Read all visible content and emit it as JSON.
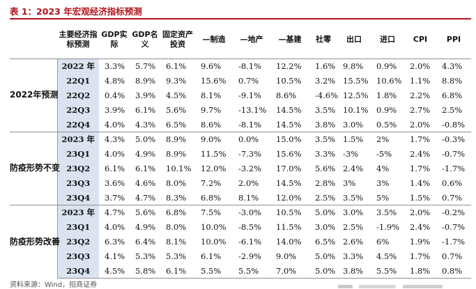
{
  "title": "表 1：2023 年宏观经济指标预测",
  "source": "资料来源：Wind，招商证券",
  "headers": [
    "",
    "主要经济指标预测",
    "GDP实际",
    "GDP名义",
    "固定资产投资",
    "—制造",
    "—地产",
    "—基建",
    "社零",
    "出口",
    "进口",
    "CPI",
    "PPI"
  ],
  "groups": [
    {
      "label": "2022年预测",
      "rows": [
        {
          "period": "2022 年",
          "values": [
            "3.3%",
            "5.7%",
            "6.1%",
            "9.6%",
            "-8.1%",
            "12.2%",
            "1.6%",
            "9.8%",
            "0.9%",
            "2.0%",
            "4.3%"
          ]
        },
        {
          "period": "22Q1",
          "values": [
            "4.8%",
            "8.9%",
            "9.3%",
            "15.6%",
            "0.7%",
            "10.5%",
            "3.2%",
            "15.5%",
            "10.6%",
            "1.1%",
            "8.8%"
          ]
        },
        {
          "period": "22Q2",
          "values": [
            "0.4%",
            "3.9%",
            "4.5%",
            "8.1%",
            "-9.1%",
            "8.6%",
            "-4.6%",
            "12.5%",
            "1.8%",
            "2.2%",
            "6.8%"
          ]
        },
        {
          "period": "22Q3",
          "values": [
            "3.9%",
            "6.1%",
            "5.6%",
            "9.7%",
            "-13.1%",
            "14.5%",
            "3.5%",
            "10.1%",
            "0.9%",
            "2.7%",
            "2.5%"
          ]
        },
        {
          "period": "22Q4",
          "values": [
            "4.0%",
            "4.3%",
            "6.5%",
            "8.6%",
            "-8.1%",
            "14.5%",
            "3.8%",
            "3.0%",
            "0.5%",
            "2.0%",
            "-0.8%"
          ]
        }
      ]
    },
    {
      "label": "防疫形势不变",
      "rows": [
        {
          "period": "2023 年",
          "values": [
            "4.3%",
            "5.0%",
            "8.9%",
            "9.0%",
            "0.0%",
            "15.0%",
            "3.5%",
            "1.5%",
            "2%",
            "1.7%",
            "-0.3%"
          ]
        },
        {
          "period": "23Q1",
          "values": [
            "4.0%",
            "4.9%",
            "8.9%",
            "11.5%",
            "-7.3%",
            "15.6%",
            "3.3%",
            "-3%",
            "-5%",
            "2.4%",
            "-0.7%"
          ]
        },
        {
          "period": "23Q2",
          "values": [
            "6.1%",
            "6.1%",
            "10.1%",
            "12.0%",
            "-3.2%",
            "17.0%",
            "5.6%",
            "2.4%",
            "4%",
            "1.7%",
            "-1.7%"
          ]
        },
        {
          "period": "23Q3",
          "values": [
            "3.6%",
            "4.6%",
            "8.0%",
            "7.2%",
            "2.0%",
            "14.5%",
            "2.8%",
            "3%",
            "3%",
            "1.4%",
            "0.6%"
          ]
        },
        {
          "period": "23Q4",
          "values": [
            "3.7%",
            "4.7%",
            "8.3%",
            "6.8%",
            "8.1%",
            "12.0%",
            "2.5%",
            "3.5%",
            "5%",
            "1.5%",
            "0.7%"
          ]
        }
      ]
    },
    {
      "label": "防疫形势改善",
      "rows": [
        {
          "period": "2023 年",
          "values": [
            "4.7%",
            "5.6%",
            "6.8%",
            "7.5%",
            "-3.0%",
            "10.5%",
            "5.0%",
            "3.0%",
            "3.5%",
            "2.0%",
            "-0.2%"
          ]
        },
        {
          "period": "23Q1",
          "values": [
            "4.0%",
            "4.9%",
            "8.0%",
            "10.0%",
            "-8.5%",
            "11.5%",
            "3.0%",
            "2.5%",
            "-1.9%",
            "2.4%",
            "-0.7%"
          ]
        },
        {
          "period": "23Q2",
          "values": [
            "6.3%",
            "6.4%",
            "8.1%",
            "10.0%",
            "-6.1%",
            "14.0%",
            "6.5%",
            "2.6%",
            "6%",
            "1.9%",
            "-1.7%"
          ]
        },
        {
          "period": "23Q3",
          "values": [
            "4.1%",
            "5.3%",
            "5.3%",
            "6.1%",
            "-2.9%",
            "9.0%",
            "5.0%",
            "3.3%",
            "4.5%",
            "1.7%",
            "0.7%"
          ]
        },
        {
          "period": "23Q4",
          "values": [
            "4.5%",
            "5.8%",
            "6.1%",
            "5.5%",
            "5.5%",
            "7.0%",
            "5.0%",
            "3.8%",
            "5.5%",
            "1.8%",
            "0.8%"
          ]
        }
      ]
    }
  ]
}
